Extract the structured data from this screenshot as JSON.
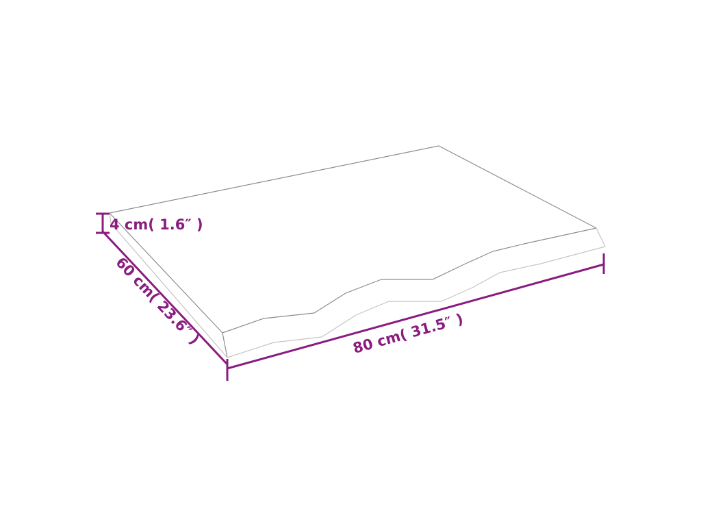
{
  "colors": {
    "dimension": "#8a1c7f",
    "outline_dark": "#8c8c8c",
    "outline_light": "#c4c4c4",
    "background": "#ffffff"
  },
  "dimensions": {
    "height_label": "4 cm( 1.6″ )",
    "depth_label": "60 cm( 23.6″ )",
    "width_label": "80 cm( 31.5″ )"
  }
}
